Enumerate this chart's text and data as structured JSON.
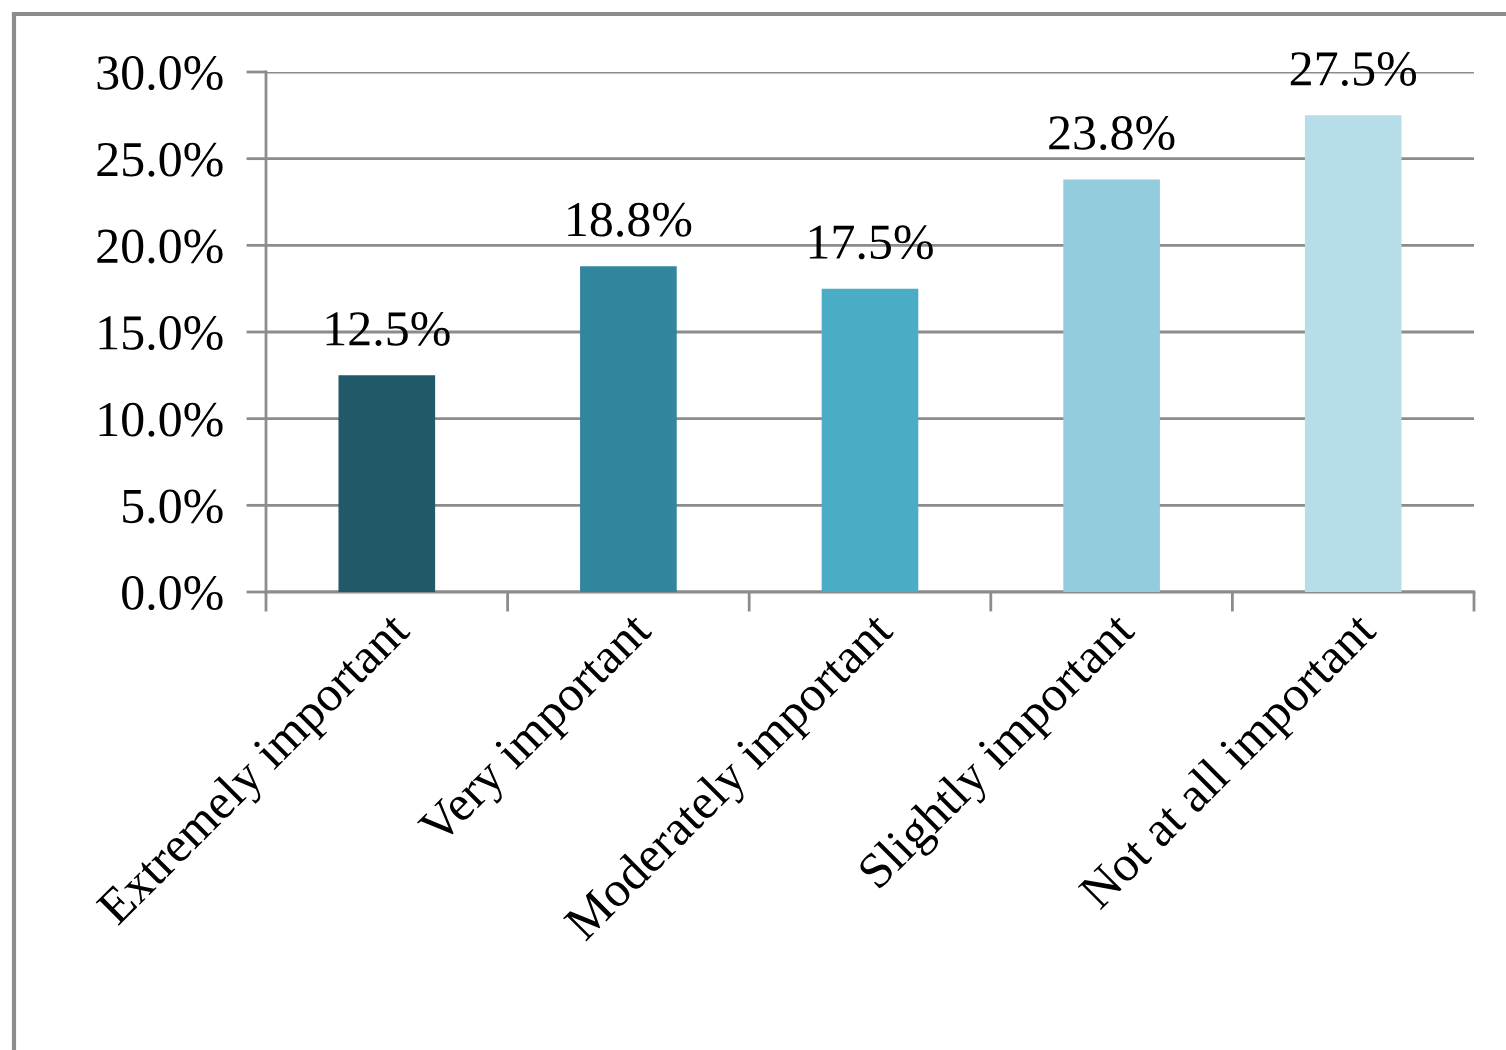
{
  "chart_data": {
    "type": "bar",
    "categories": [
      "Extremely important",
      "Very important",
      "Moderately important",
      "Slightly important",
      "Not at all important"
    ],
    "values": [
      12.5,
      18.8,
      17.5,
      23.8,
      27.5
    ],
    "colors": [
      "#215968",
      "#31859c",
      "#4bacc6",
      "#93cddd",
      "#b7dee8"
    ],
    "value_labels": [
      "12.5%",
      "18.8%",
      "17.5%",
      "23.8%",
      "27.5%"
    ],
    "ylim": [
      0,
      30
    ],
    "yticks": [
      {
        "value": 0,
        "label": "0.0%"
      },
      {
        "value": 5,
        "label": "5.0%"
      },
      {
        "value": 10,
        "label": "10.0%"
      },
      {
        "value": 15,
        "label": "15.0%"
      },
      {
        "value": 20,
        "label": "20.0%"
      },
      {
        "value": 25,
        "label": "25.0%"
      },
      {
        "value": 30,
        "label": "30.0%"
      }
    ],
    "grid": "y"
  }
}
